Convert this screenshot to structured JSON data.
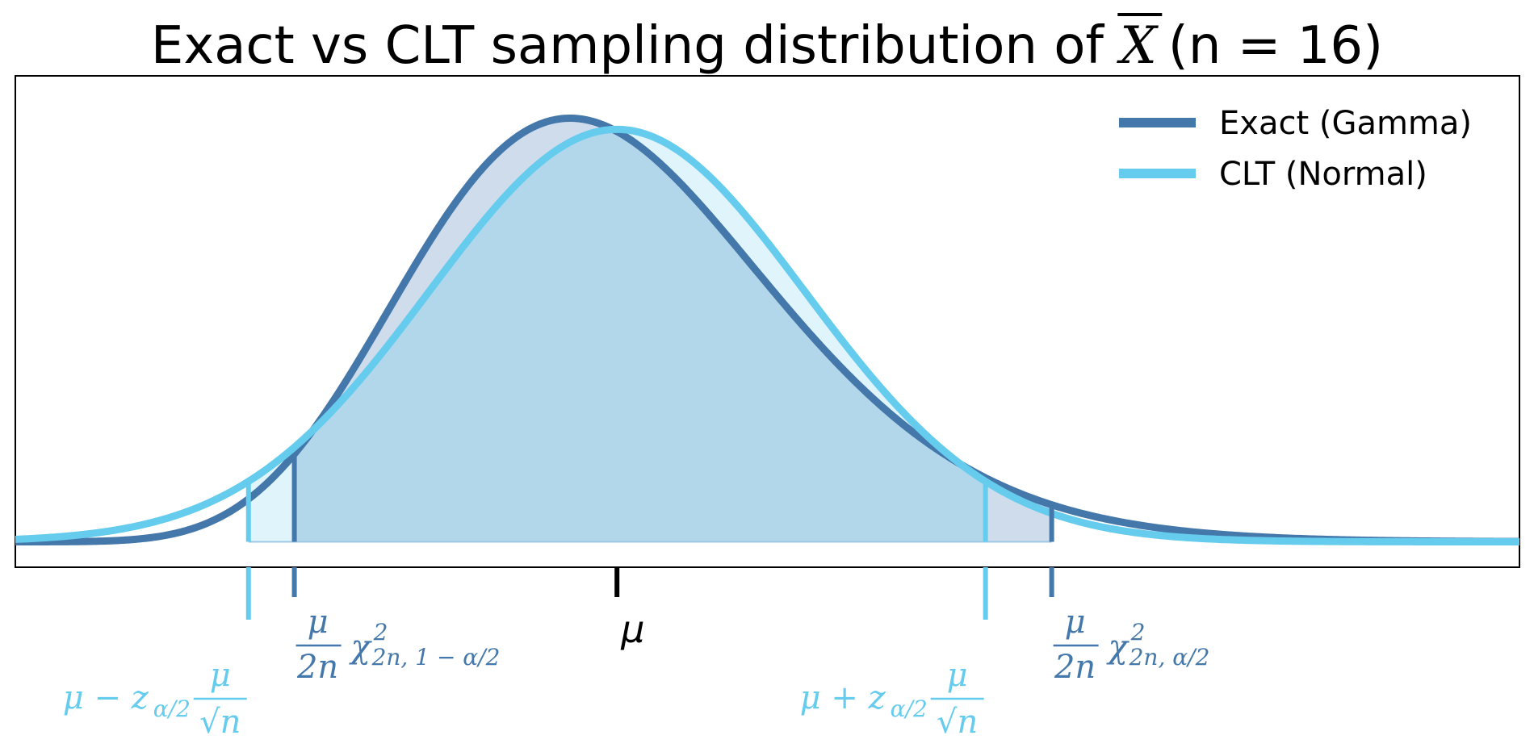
{
  "chart_data": {
    "type": "line",
    "title": {
      "prefix": "Exact vs CLT sampling distribution of ",
      "xbar": "X",
      "n_text": "(n = 16)"
    },
    "n": 16,
    "mu": 1,
    "xlim": [
      0.2,
      2.2
    ],
    "ylim": [
      -0.06,
      1.1
    ],
    "series": [
      {
        "name": "Exact (Gamma)",
        "color": "#4477AA",
        "shade_color": "#cfdcec"
      },
      {
        "name": "CLT (Normal)",
        "color": "#66CCEE",
        "shade_color": "#dff4fb"
      }
    ],
    "overlap_shade_color": "#b3d7ea",
    "intervals": {
      "exact": {
        "lower": 0.571,
        "upper": 1.578
      },
      "clt": {
        "lower": 0.51,
        "upper": 1.49
      }
    },
    "tick_labels": {
      "mu": "μ",
      "exact_lower": {
        "frac_num": "μ",
        "frac_den": "2n",
        "chi": "χ",
        "sup": "2",
        "sub": "2n, 1 − α/2"
      },
      "exact_upper": {
        "frac_num": "μ",
        "frac_den": "2n",
        "chi": "χ",
        "sup": "2",
        "sub": "2n, α/2"
      },
      "clt_lower": {
        "prefix": "μ − z",
        "sub": "α/2",
        "frac_num": "μ",
        "frac_den": "√n"
      },
      "clt_upper": {
        "prefix": "μ + z",
        "sub": "α/2",
        "frac_num": "μ",
        "frac_den": "√n"
      }
    },
    "legend_position": "top-right",
    "grid": false
  }
}
